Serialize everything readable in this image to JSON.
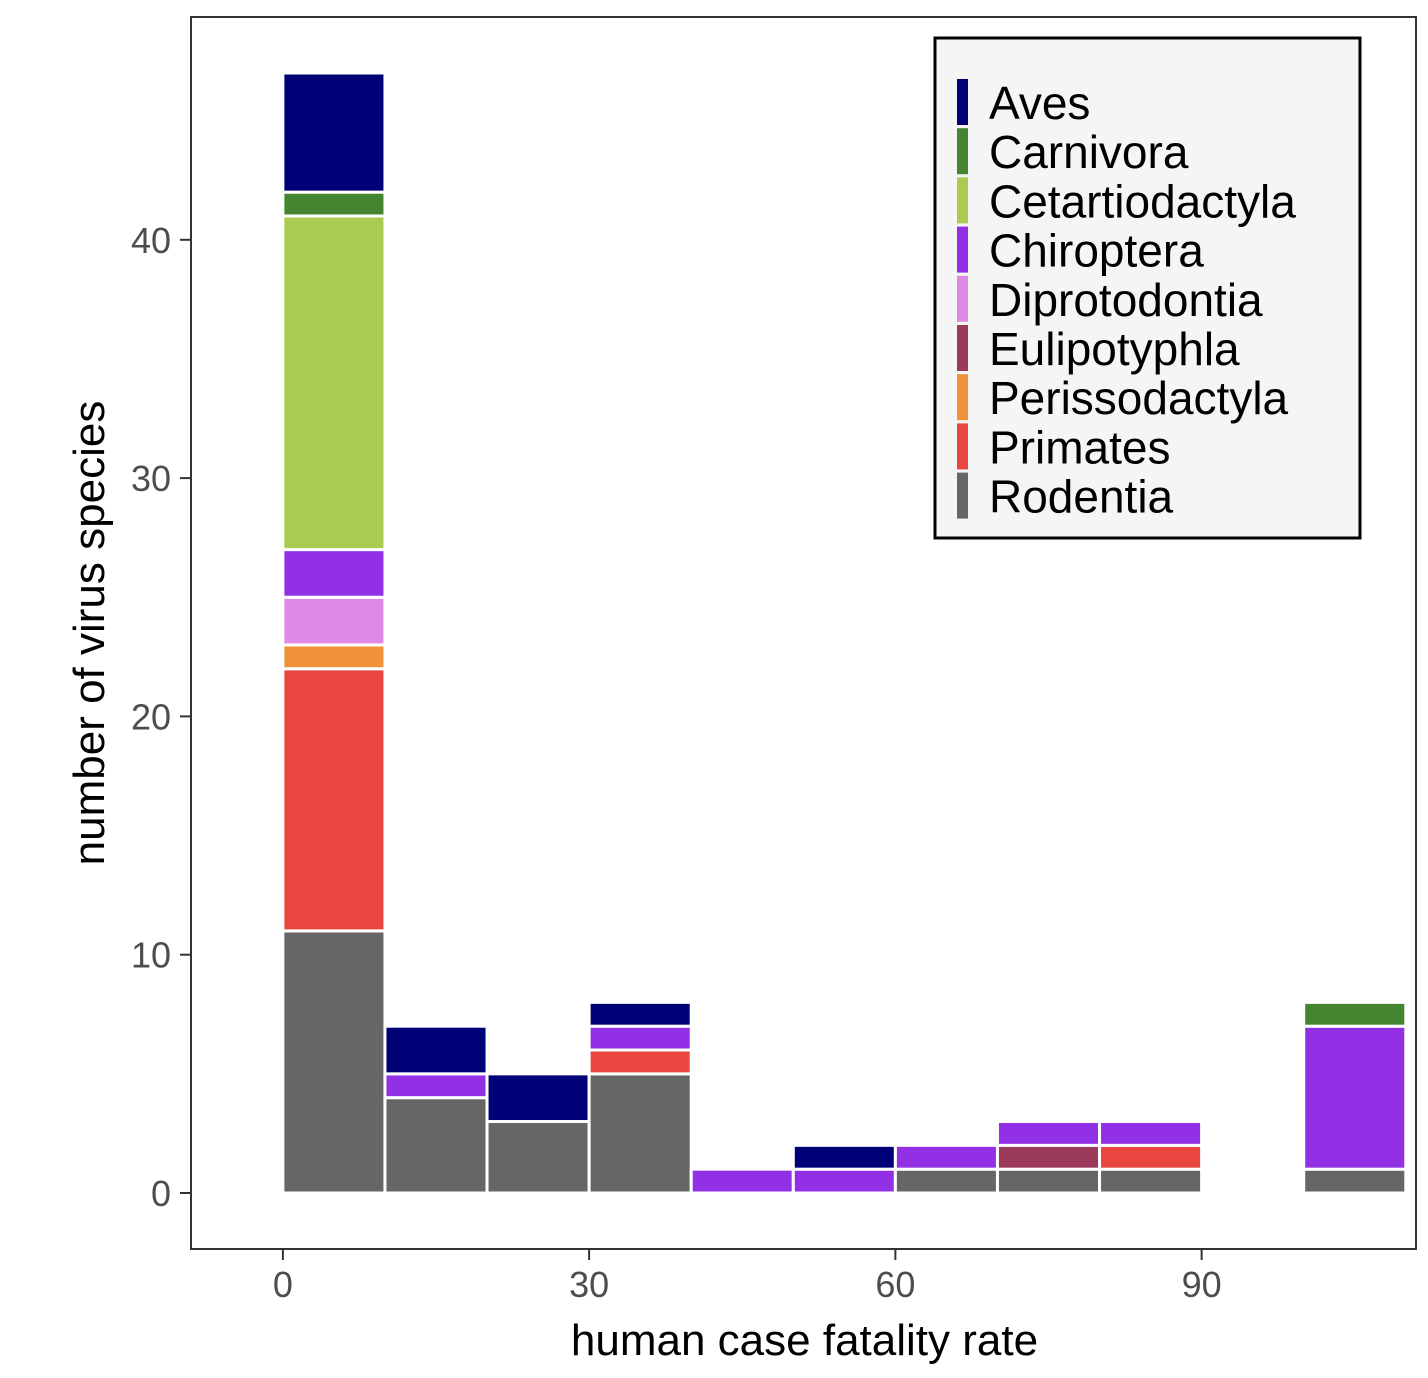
{
  "chart_data": {
    "type": "bar",
    "stacked": true,
    "histogram": true,
    "xlabel": "human case fatality rate",
    "ylabel": "number of virus species",
    "xlim": [
      -9,
      111
    ],
    "ylim": [
      -2.35,
      49.35
    ],
    "xticks": [
      0,
      30,
      60,
      90
    ],
    "yticks": [
      0,
      10,
      20,
      30,
      40
    ],
    "bin_width": 10,
    "bins": [
      0,
      10,
      20,
      30,
      40,
      50,
      60,
      70,
      80,
      90,
      100
    ],
    "grid": false,
    "legend_position": "top-right",
    "series": [
      {
        "name": "Rodentia",
        "color": "#666666",
        "values": [
          11,
          4,
          3,
          5,
          0,
          0,
          1,
          1,
          1,
          0,
          1
        ]
      },
      {
        "name": "Primates",
        "color": "#e8463e",
        "values": [
          11,
          0,
          0,
          1,
          0,
          0,
          0,
          0,
          1,
          0,
          0
        ]
      },
      {
        "name": "Perissodactyla",
        "color": "#ef923a",
        "values": [
          1,
          0,
          0,
          0,
          0,
          0,
          0,
          0,
          0,
          0,
          0
        ]
      },
      {
        "name": "Eulipotyphla",
        "color": "#9c3a5c",
        "values": [
          0,
          0,
          0,
          0,
          0,
          0,
          0,
          1,
          0,
          0,
          0
        ]
      },
      {
        "name": "Diprotodontia",
        "color": "#e088e6",
        "values": [
          2,
          0,
          0,
          0,
          0,
          0,
          0,
          0,
          0,
          0,
          0
        ]
      },
      {
        "name": "Chiroptera",
        "color": "#9230e6",
        "values": [
          2,
          1,
          0,
          1,
          1,
          1,
          1,
          1,
          1,
          0,
          6
        ]
      },
      {
        "name": "Cetartiodactyla",
        "color": "#a8cb50",
        "values": [
          14,
          0,
          0,
          0,
          0,
          0,
          0,
          0,
          0,
          0,
          0
        ]
      },
      {
        "name": "Carnivora",
        "color": "#43862f",
        "values": [
          1,
          0,
          0,
          0,
          0,
          0,
          0,
          0,
          0,
          0,
          1
        ]
      },
      {
        "name": "Aves",
        "color": "#000077",
        "values": [
          5,
          2,
          2,
          1,
          0,
          1,
          0,
          0,
          0,
          0,
          0
        ]
      }
    ],
    "legend_order": [
      "Aves",
      "Carnivora",
      "Cetartiodactyla",
      "Chiroptera",
      "Diprotodontia",
      "Eulipotyphla",
      "Perissodactyla",
      "Primates",
      "Rodentia"
    ]
  }
}
